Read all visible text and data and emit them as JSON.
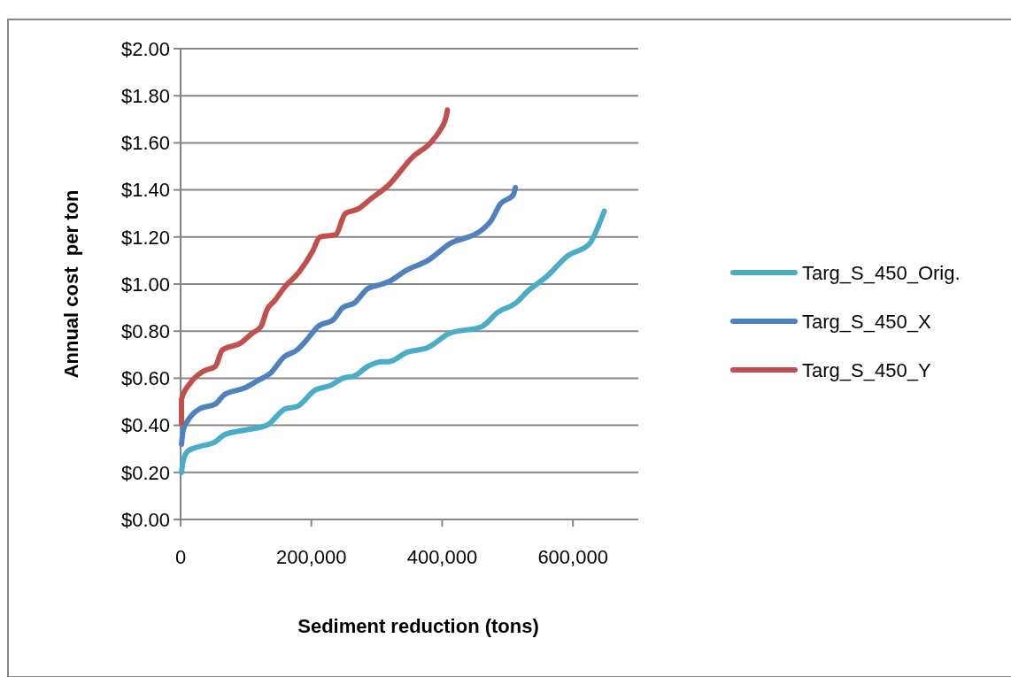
{
  "chart_data": {
    "type": "line",
    "xlabel": "Sediment reduction (tons)",
    "ylabel": "Annual cost  per ton",
    "xlim": [
      0,
      700000
    ],
    "xticks": [
      {
        "value": 0,
        "label": "0"
      },
      {
        "value": 200000,
        "label": "200,000"
      },
      {
        "value": 400000,
        "label": "400,000"
      },
      {
        "value": 600000,
        "label": "600,000"
      }
    ],
    "ylim": [
      0,
      2
    ],
    "yticks": [
      {
        "value": 0,
        "label": "$0.00"
      },
      {
        "value": 0.2,
        "label": "$0.20"
      },
      {
        "value": 0.4,
        "label": "$0.40"
      },
      {
        "value": 0.6,
        "label": "$0.60"
      },
      {
        "value": 0.8,
        "label": "$0.80"
      },
      {
        "value": 1,
        "label": "$1.00"
      },
      {
        "value": 1.2,
        "label": "$1.20"
      },
      {
        "value": 1.4,
        "label": "$1.40"
      },
      {
        "value": 1.6,
        "label": "$1.60"
      },
      {
        "value": 1.8,
        "label": "$1.80"
      },
      {
        "value": 2,
        "label": "$2.00"
      }
    ],
    "grid": "y",
    "legend": "right",
    "marker": "none",
    "line_style": "solid",
    "series": [
      {
        "name": "Targ_S_450_Orig.",
        "color": "#4bacc6",
        "x": [
          1400,
          4000,
          11000,
          29000,
          53000,
          67000,
          99000,
          132000,
          160000,
          178000,
          206000,
          230000,
          248000,
          266000,
          286000,
          308000,
          318000,
          346000,
          378000,
          411000,
          461000,
          485000,
          513000,
          531000,
          559000,
          592000,
          625000,
          638000,
          648000
        ],
        "values": [
          0.2,
          0.25,
          0.29,
          0.31,
          0.33,
          0.36,
          0.38,
          0.4,
          0.47,
          0.48,
          0.55,
          0.57,
          0.6,
          0.61,
          0.65,
          0.67,
          0.67,
          0.71,
          0.73,
          0.79,
          0.82,
          0.88,
          0.92,
          0.97,
          1.03,
          1.12,
          1.17,
          1.24,
          1.31
        ]
      },
      {
        "name": "Targ_S_450_X",
        "color": "#4f81bd",
        "x": [
          1400,
          4000,
          11000,
          29000,
          53000,
          67000,
          99000,
          118000,
          137000,
          158000,
          178000,
          192000,
          210000,
          234000,
          248000,
          266000,
          286000,
          308000,
          318000,
          346000,
          378000,
          411000,
          461000,
          475000,
          489000,
          509000,
          512000
        ],
        "values": [
          0.32,
          0.38,
          0.42,
          0.47,
          0.49,
          0.53,
          0.56,
          0.59,
          0.62,
          0.69,
          0.72,
          0.76,
          0.82,
          0.85,
          0.9,
          0.92,
          0.98,
          1.0,
          1.01,
          1.06,
          1.1,
          1.17,
          1.23,
          1.27,
          1.34,
          1.38,
          1.41
        ]
      },
      {
        "name": "Targ_S_450_Y",
        "color": "#c0504d",
        "x": [
          1400,
          1400,
          15000,
          35000,
          53000,
          64000,
          92000,
          109000,
          123000,
          132000,
          144000,
          160000,
          181000,
          202000,
          213000,
          237000,
          252000,
          272000,
          290000,
          318000,
          355000,
          382000,
          396000,
          406000,
          408000
        ],
        "values": [
          0.41,
          0.51,
          0.58,
          0.63,
          0.65,
          0.72,
          0.75,
          0.79,
          0.82,
          0.89,
          0.93,
          0.99,
          1.05,
          1.14,
          1.2,
          1.21,
          1.3,
          1.32,
          1.36,
          1.42,
          1.54,
          1.6,
          1.65,
          1.71,
          1.74
        ]
      }
    ]
  }
}
